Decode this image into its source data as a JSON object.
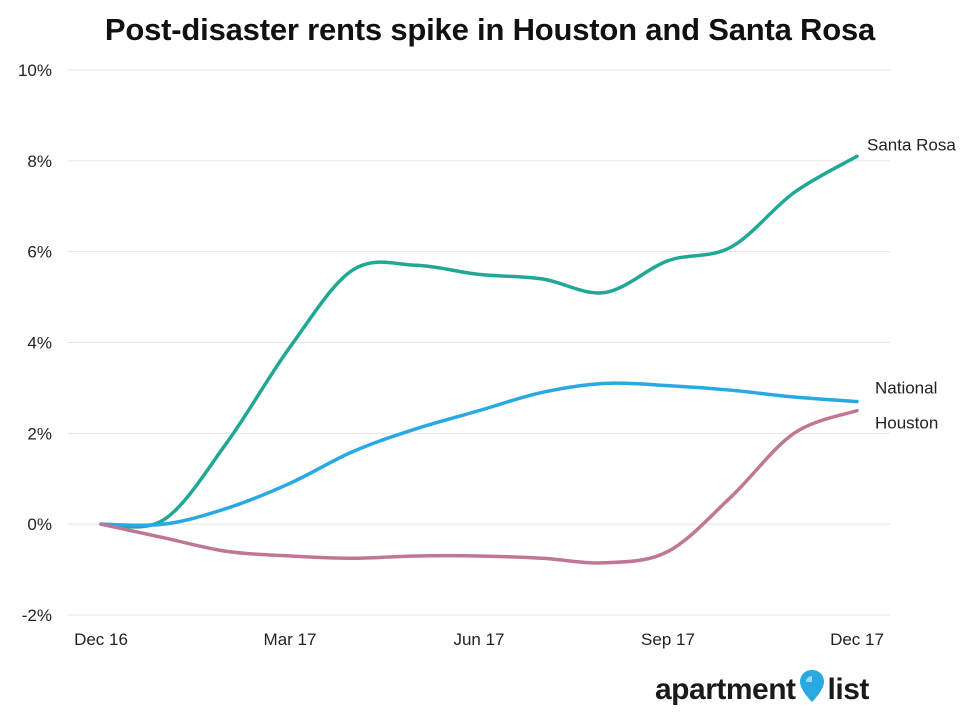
{
  "colors": {
    "santa_rosa": "#1fa896",
    "national": "#29a9e1",
    "houston": "#c07694",
    "grid": "#e4e4e4",
    "logo_pin": "#29a9e1",
    "logo_text": "#1a1a1a"
  },
  "logo": {
    "text_left": "apartment",
    "text_right": "list",
    "icon": "map-pin-icon"
  },
  "chart_data": {
    "type": "line",
    "title": "Post-disaster rents spike in Houston and Santa Rosa",
    "xlabel": "",
    "ylabel": "",
    "x_ticks": [
      "Dec 16",
      "Mar 17",
      "Jun 17",
      "Sep 17",
      "Dec 17"
    ],
    "x": [
      "Dec 16",
      "Jan 17",
      "Feb 17",
      "Mar 17",
      "Apr 17",
      "May 17",
      "Jun 17",
      "Jul 17",
      "Aug 17",
      "Sep 17",
      "Oct 17",
      "Nov 17",
      "Dec 17"
    ],
    "y_ticks": [
      "10%",
      "8%",
      "6%",
      "4%",
      "2%",
      "0%",
      "-2%"
    ],
    "ylim": [
      -2,
      10
    ],
    "y_unit": "%",
    "grid": "horizontal",
    "legend": "labels at line ends",
    "series": [
      {
        "name": "Santa Rosa",
        "color_key": "santa_rosa",
        "values": [
          0.0,
          0.1,
          1.8,
          3.9,
          5.6,
          5.7,
          5.5,
          5.4,
          5.1,
          5.8,
          6.1,
          7.3,
          8.1
        ]
      },
      {
        "name": "National",
        "color_key": "national",
        "values": [
          0.0,
          0.0,
          0.35,
          0.9,
          1.6,
          2.1,
          2.5,
          2.9,
          3.1,
          3.05,
          2.95,
          2.8,
          2.7
        ]
      },
      {
        "name": "Houston",
        "color_key": "houston",
        "values": [
          0.0,
          -0.3,
          -0.6,
          -0.7,
          -0.75,
          -0.7,
          -0.7,
          -0.75,
          -0.85,
          -0.6,
          0.6,
          2.0,
          2.5
        ]
      }
    ]
  }
}
